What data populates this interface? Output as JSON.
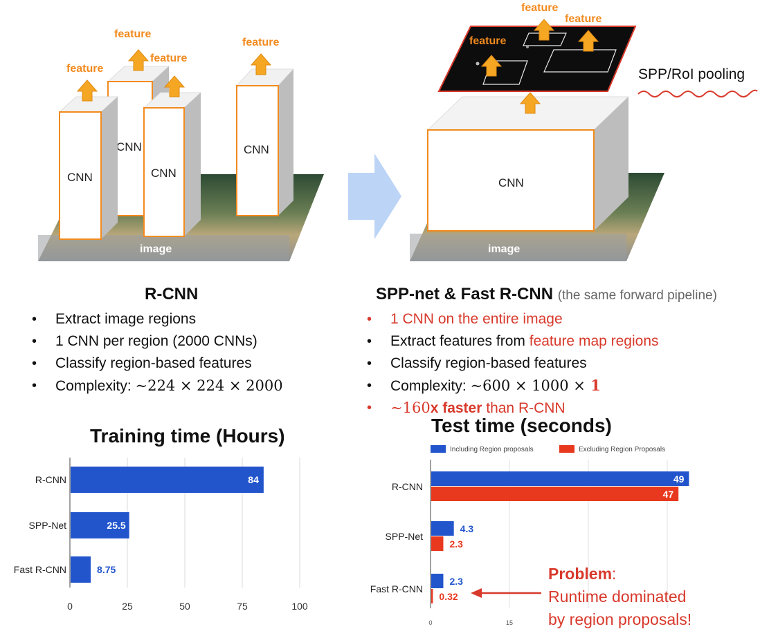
{
  "diagram": {
    "left": {
      "features": [
        "feature",
        "feature",
        "feature",
        "feature"
      ],
      "cnn_labels": [
        "CNN",
        "CNN",
        "CNN",
        "CNN"
      ],
      "image_label": "image"
    },
    "right": {
      "features": [
        "feature",
        "feature",
        "feature"
      ],
      "cnn_label": "CNN",
      "image_label": "image",
      "pooling_label": "SPP/RoI pooling"
    }
  },
  "rcnn": {
    "title": "R-CNN",
    "bullets": [
      "Extract image regions",
      "1 CNN per region (2000 CNNs)",
      "Classify region-based features"
    ],
    "complexity_prefix": "Complexity: ",
    "complexity_math": "∼224 × 224 × 2000"
  },
  "fast": {
    "title": "SPP-net & Fast R-CNN",
    "subtitle": "(the same forward pipeline)",
    "bullet1": "1 CNN on the entire image",
    "bullet2_prefix": "Extract features from ",
    "bullet2_red": "feature map regions",
    "bullet3": "Classify region-based features",
    "complexity_prefix": "Complexity: ",
    "complexity_math": "∼600 × 1000 ×",
    "complexity_red": " 1",
    "speed_math": "∼160",
    "speed_bold": "x faster",
    "speed_rest": " than R-CNN"
  },
  "chart_data": [
    {
      "type": "bar",
      "orientation": "horizontal",
      "title": "Training time (Hours)",
      "categories": [
        "R-CNN",
        "SPP-Net",
        "Fast R-CNN"
      ],
      "series": [
        {
          "values": [
            84,
            25.5,
            8.75
          ],
          "color": "#2255cc"
        }
      ],
      "value_labels": [
        "84",
        "25.5",
        "8.75"
      ],
      "xlim": [
        0,
        100
      ],
      "xticks": [
        0,
        25,
        50,
        75,
        100
      ],
      "grid": true
    },
    {
      "type": "bar",
      "orientation": "horizontal",
      "title": "Test time (seconds)",
      "categories": [
        "R-CNN",
        "SPP-Net",
        "Fast R-CNN"
      ],
      "series": [
        {
          "name": "Including Region proposals",
          "values": [
            49,
            4.3,
            2.3
          ],
          "color": "#2255cc"
        },
        {
          "name": "Excluding Region Proposals",
          "values": [
            47,
            2.3,
            0.32
          ],
          "color": "#e8391f"
        }
      ],
      "value_labels": [
        [
          "49",
          "4.3",
          "2.3"
        ],
        [
          "47",
          "2.3",
          "0.32"
        ]
      ],
      "xlim": [
        0,
        50
      ],
      "xticks": [
        0,
        15
      ],
      "legend": "top",
      "grid": true
    }
  ],
  "annotation": {
    "problem_bold": "Problem",
    "problem_colon": ":",
    "problem_line2": "Runtime dominated",
    "problem_line3": "by region proposals!"
  },
  "colors": {
    "accent_orange": "#f28a1e",
    "red": "#d8392b",
    "blue": "#2255cc",
    "arrow_blue": "#bcd4f5"
  }
}
